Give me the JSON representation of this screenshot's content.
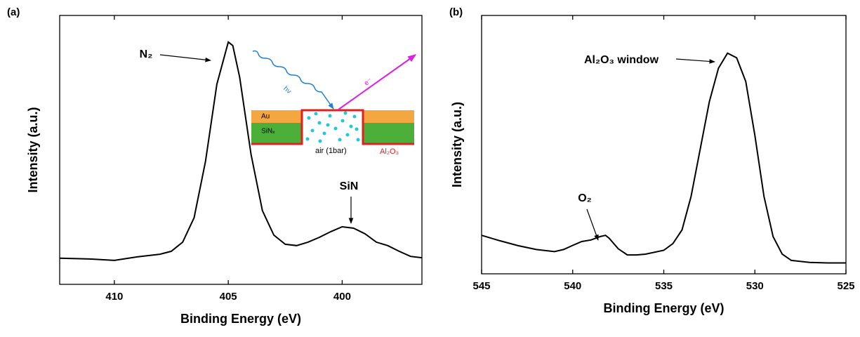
{
  "chart_data": [
    {
      "type": "line",
      "panel_label": "(a)",
      "xlabel": "Binding Energy (eV)",
      "ylabel": "Intensity (a.u.)",
      "color": "#000000",
      "x": [
        412.4,
        411,
        410,
        409,
        408,
        407.5,
        407,
        406.5,
        406,
        405.5,
        405,
        404.8,
        404.5,
        404,
        403.5,
        403,
        402.5,
        402,
        401.5,
        401,
        400.5,
        400,
        399.5,
        399,
        398.5,
        398,
        397.5,
        397,
        396.5
      ],
      "values": [
        9.7,
        9.4,
        8.9,
        10.2,
        11.2,
        12.3,
        15.7,
        24.8,
        45.7,
        74.4,
        90.1,
        88.8,
        77,
        48.3,
        27.4,
        18.3,
        14.9,
        14.4,
        15.7,
        17.5,
        19.6,
        21.4,
        20.9,
        18.8,
        15.7,
        14.4,
        12.3,
        10.4,
        9.9
      ],
      "xlim": [
        412.4,
        396.5
      ],
      "xticks": [
        410,
        405,
        400
      ],
      "ylim": [
        0,
        100
      ],
      "annotations": [
        "N₂",
        "SiN"
      ],
      "inset_labels": [
        "hν",
        "e⁻",
        "Au",
        "SiNₓ",
        "air (1bar)",
        "Al₂O₃"
      ]
    },
    {
      "type": "line",
      "panel_label": "(b)",
      "xlabel": "Binding Energy (eV)",
      "ylabel": "Intensity (a.u.)",
      "color": "#000000",
      "x": [
        545,
        544,
        543,
        542,
        541,
        540.5,
        540,
        539.5,
        539,
        538.5,
        538.2,
        538,
        537.5,
        537,
        536.5,
        536,
        535,
        534.5,
        534,
        533.5,
        533,
        532.5,
        532,
        531.5,
        531,
        530.5,
        530,
        529.5,
        529,
        528.5,
        528,
        527,
        526,
        525
      ],
      "values": [
        14.9,
        12.8,
        10.9,
        9.4,
        8.6,
        9.4,
        11.0,
        12.5,
        13.1,
        14.4,
        14.9,
        13.8,
        9.7,
        7.3,
        7.3,
        7.6,
        9.1,
        11.7,
        17.0,
        30.0,
        48.3,
        66.6,
        79.6,
        85.4,
        83.6,
        74.4,
        53.5,
        30.0,
        14.4,
        7.6,
        5.2,
        4.4,
        4.2,
        4.2
      ],
      "xlim": [
        545,
        525
      ],
      "xticks": [
        545,
        540,
        535,
        530,
        525
      ],
      "ylim": [
        0,
        100
      ],
      "annotations": [
        "Al₂O₃ window",
        "O₂"
      ]
    }
  ]
}
